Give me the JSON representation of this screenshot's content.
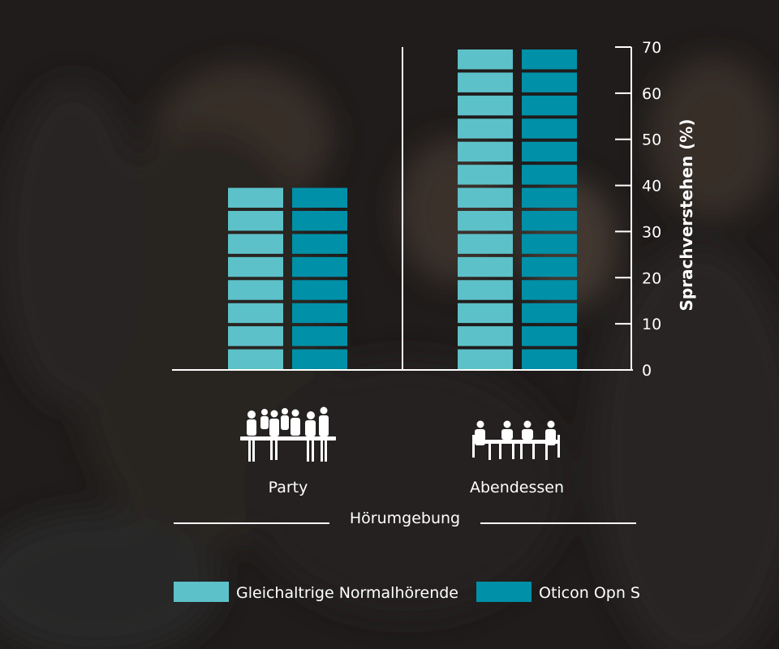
{
  "chart_data": {
    "type": "bar",
    "categories": [
      "Party",
      "Abendessen"
    ],
    "series": [
      {
        "name": "Gleichaltrige Normalhörende",
        "values": [
          40,
          70
        ],
        "color": "#5dc1c9"
      },
      {
        "name": "Oticon Opn S",
        "values": [
          40,
          70
        ],
        "color": "#0090a8"
      }
    ],
    "xlabel": "Hörumgebung",
    "ylabel": "Sprachverstehen (%)",
    "ylim": [
      0,
      70
    ],
    "yticks": [
      "0",
      "10",
      "20",
      "30",
      "40",
      "50",
      "60",
      "70"
    ],
    "bar_style": "stacked blocks of 5 units",
    "grid": false,
    "legend_position": "bottom",
    "category_icons": [
      "party-group-icon",
      "dinner-table-icon"
    ]
  },
  "colors": {
    "background": "#1f1c1b",
    "axis": "#ffffff",
    "text": "#ffffff"
  }
}
